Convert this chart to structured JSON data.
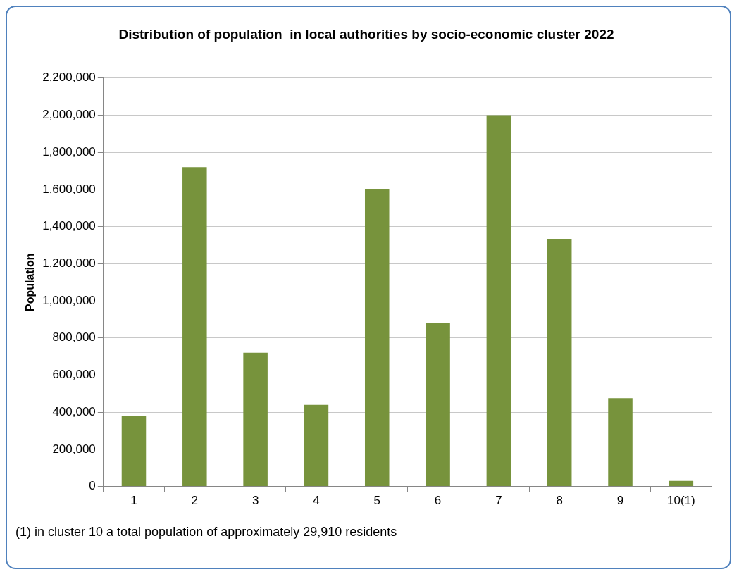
{
  "chart_data": {
    "type": "bar",
    "title": "Distribution of population  in local authorities by socio-economic cluster 2022",
    "ylabel": "Population",
    "categories": [
      "1",
      "2",
      "3",
      "4",
      "5",
      "6",
      "7",
      "8",
      "9",
      "10(1)"
    ],
    "values": [
      378000,
      1720000,
      720000,
      440000,
      1600000,
      880000,
      2000000,
      1332000,
      476000,
      29910
    ],
    "color": "#77933c",
    "ylim": [
      0,
      2200000
    ],
    "yticks": [
      0,
      {
        "value": 200000,
        "label": "200,000"
      },
      {
        "value": 400000,
        "label": "400,000"
      },
      {
        "value": 600000,
        "label": "600,000"
      },
      {
        "value": 800000,
        "label": "800,000"
      },
      {
        "value": 1000000,
        "label": "1,000,000"
      },
      {
        "value": 1200000,
        "label": "1,200,000"
      },
      {
        "value": 1400000,
        "label": "1,400,000"
      },
      {
        "value": 1600000,
        "label": "1,600,000"
      },
      {
        "value": 1800000,
        "label": "1,800,000"
      },
      {
        "value": 2000000,
        "label": "2,000,000"
      },
      {
        "value": 2200000,
        "label": "2,200,000"
      }
    ],
    "grid": "y",
    "legend": false,
    "annotations": [
      "(1) in cluster 10 a total population of approximately  29,910 residents"
    ]
  }
}
